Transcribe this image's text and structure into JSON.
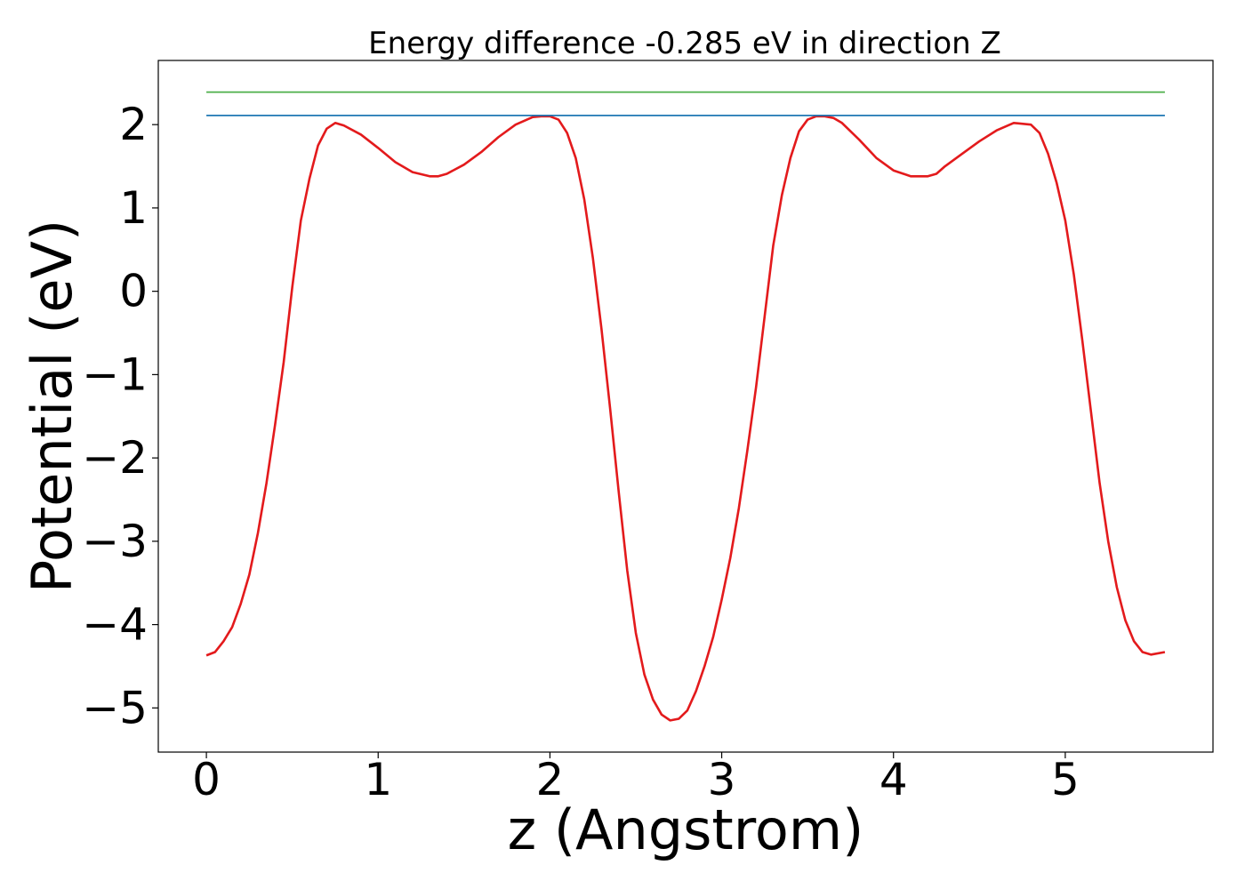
{
  "chart_data": {
    "type": "line",
    "title": "Energy difference -0.285 eV in direction Z",
    "xlabel": "z (Angstrom)",
    "ylabel": "Potential (eV)",
    "xlim": [
      -0.28,
      5.86
    ],
    "ylim": [
      -5.53,
      2.77
    ],
    "xticks": [
      0,
      1,
      2,
      3,
      4,
      5
    ],
    "xtick_labels": [
      "0",
      "1",
      "2",
      "3",
      "4",
      "5"
    ],
    "yticks": [
      -5,
      -4,
      -3,
      -2,
      -1,
      0,
      1,
      2
    ],
    "ytick_labels": [
      "−5",
      "−4",
      "−3",
      "−2",
      "−1",
      "0",
      "1",
      "2"
    ],
    "grid": false,
    "legend": "none",
    "series": [
      {
        "color": "#e31a1c",
        "x": [
          0.0,
          0.05,
          0.1,
          0.15,
          0.2,
          0.25,
          0.3,
          0.35,
          0.4,
          0.45,
          0.5,
          0.55,
          0.6,
          0.65,
          0.7,
          0.75,
          0.8,
          0.9,
          1.0,
          1.1,
          1.2,
          1.3,
          1.35,
          1.4,
          1.5,
          1.6,
          1.7,
          1.8,
          1.9,
          1.95,
          2.0,
          2.05,
          2.1,
          2.15,
          2.2,
          2.25,
          2.3,
          2.35,
          2.4,
          2.45,
          2.5,
          2.55,
          2.6,
          2.65,
          2.7,
          2.75,
          2.8,
          2.85,
          2.9,
          2.95,
          3.0,
          3.05,
          3.1,
          3.15,
          3.2,
          3.25,
          3.3,
          3.35,
          3.4,
          3.45,
          3.5,
          3.55,
          3.6,
          3.65,
          3.7,
          3.8,
          3.9,
          4.0,
          4.1,
          4.2,
          4.25,
          4.3,
          4.4,
          4.5,
          4.6,
          4.7,
          4.8,
          4.85,
          4.9,
          4.95,
          5.0,
          5.05,
          5.1,
          5.15,
          5.2,
          5.25,
          5.3,
          5.35,
          5.4,
          5.45,
          5.5,
          5.58
        ],
        "y": [
          -4.37,
          -4.33,
          -4.2,
          -4.03,
          -3.75,
          -3.4,
          -2.9,
          -2.3,
          -1.6,
          -0.85,
          0.05,
          0.85,
          1.35,
          1.75,
          1.95,
          2.02,
          1.99,
          1.88,
          1.72,
          1.55,
          1.43,
          1.38,
          1.38,
          1.41,
          1.52,
          1.67,
          1.85,
          2.0,
          2.09,
          2.1,
          2.1,
          2.06,
          1.9,
          1.6,
          1.1,
          0.4,
          -0.45,
          -1.4,
          -2.4,
          -3.35,
          -4.1,
          -4.6,
          -4.9,
          -5.08,
          -5.15,
          -5.13,
          -5.03,
          -4.8,
          -4.5,
          -4.15,
          -3.7,
          -3.2,
          -2.6,
          -1.9,
          -1.15,
          -0.3,
          0.55,
          1.15,
          1.6,
          1.92,
          2.06,
          2.1,
          2.1,
          2.08,
          2.02,
          1.82,
          1.6,
          1.45,
          1.38,
          1.38,
          1.41,
          1.5,
          1.65,
          1.8,
          1.93,
          2.02,
          2.0,
          1.9,
          1.65,
          1.3,
          0.85,
          0.2,
          -0.6,
          -1.45,
          -2.3,
          -3.0,
          -3.55,
          -3.95,
          -4.2,
          -4.33,
          -4.36,
          -4.33
        ]
      },
      {
        "color": "#1f77b4",
        "x": [
          0.0,
          5.58
        ],
        "y": [
          2.11,
          2.11
        ]
      },
      {
        "color": "#4daf4a",
        "x": [
          0.0,
          5.58
        ],
        "y": [
          2.39,
          2.39
        ]
      }
    ]
  }
}
